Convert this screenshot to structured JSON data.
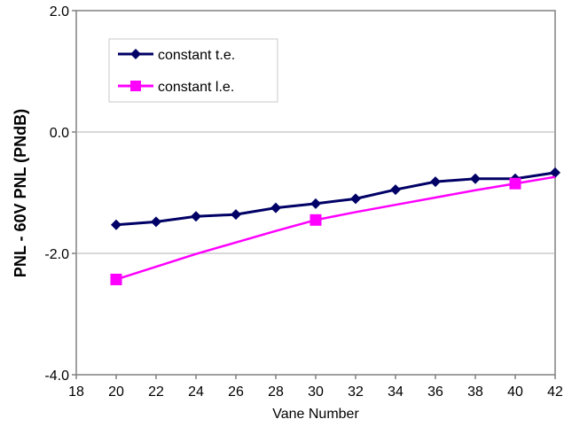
{
  "chart_data": {
    "type": "line",
    "title": "",
    "xlabel": "Vane Number",
    "ylabel": "PNL - 60V PNL (PNdB)",
    "xlim": [
      18,
      42
    ],
    "ylim": [
      -4.0,
      2.0
    ],
    "xticks": [
      "18",
      "20",
      "22",
      "24",
      "26",
      "28",
      "30",
      "32",
      "34",
      "36",
      "38",
      "40",
      "42"
    ],
    "yticks": [
      "2.0",
      "0.0",
      "-2.0",
      "-4.0"
    ],
    "grid": "horizontal",
    "legend_position": "top-left",
    "series": [
      {
        "name": "constant t.e.",
        "color": "#000066",
        "marker": "diamond",
        "x": [
          20,
          22,
          24,
          26,
          28,
          30,
          32,
          34,
          36,
          38,
          40,
          42
        ],
        "y": [
          -1.53,
          -1.48,
          -1.39,
          -1.36,
          -1.25,
          -1.18,
          -1.1,
          -0.95,
          -0.82,
          -0.77,
          -0.77,
          -0.67
        ]
      },
      {
        "name": "constant l.e.",
        "color": "#ff00ff",
        "marker": "square",
        "x": [
          20,
          30,
          40
        ],
        "y": [
          -2.43,
          -1.45,
          -0.85
        ],
        "trend_x": [
          20,
          22,
          24,
          26,
          28,
          30,
          32,
          34,
          36,
          38,
          40,
          42
        ],
        "trend_y": [
          -2.43,
          -2.22,
          -2.01,
          -1.82,
          -1.63,
          -1.45,
          -1.32,
          -1.2,
          -1.08,
          -0.96,
          -0.85,
          -0.74
        ]
      }
    ]
  }
}
